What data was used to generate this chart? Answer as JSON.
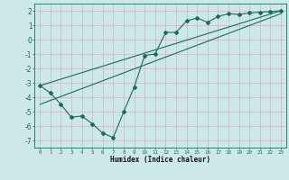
{
  "xlabel": "Humidex (Indice chaleur)",
  "background_color": "#cce8e8",
  "grid_color": "#c8b8b8",
  "line_color": "#1a6b5a",
  "xlim": [
    -0.5,
    23.5
  ],
  "ylim": [
    -7.5,
    2.5
  ],
  "xticks": [
    0,
    1,
    2,
    3,
    4,
    5,
    6,
    7,
    8,
    9,
    10,
    11,
    12,
    13,
    14,
    15,
    16,
    17,
    18,
    19,
    20,
    21,
    22,
    23
  ],
  "yticks": [
    -7,
    -6,
    -5,
    -4,
    -3,
    -2,
    -1,
    0,
    1,
    2
  ],
  "line1_x": [
    0,
    1,
    2,
    3,
    4,
    5,
    6,
    7,
    8,
    9,
    10,
    11,
    12,
    13,
    14,
    15,
    16,
    17,
    18,
    19,
    20,
    21,
    22,
    23
  ],
  "line1_y": [
    -3.2,
    -3.7,
    -4.5,
    -5.4,
    -5.3,
    -5.85,
    -6.5,
    -6.8,
    -5.0,
    -3.3,
    -1.1,
    -1.0,
    0.5,
    0.5,
    1.3,
    1.5,
    1.2,
    1.6,
    1.8,
    1.75,
    1.85,
    1.9,
    1.95,
    2.0
  ],
  "line2_x": [
    0,
    23
  ],
  "line2_y": [
    -3.2,
    2.0
  ],
  "line3_x": [
    0,
    23
  ],
  "line3_y": [
    -4.5,
    1.8
  ]
}
